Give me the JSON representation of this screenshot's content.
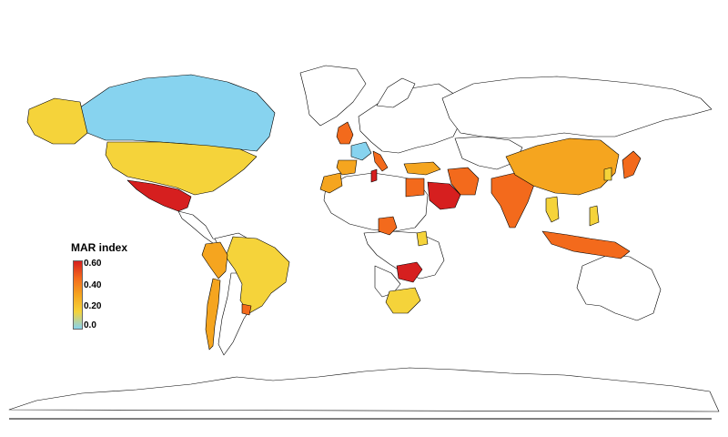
{
  "legend": {
    "title": "MAR index",
    "ticks": [
      "0.60",
      "0.40",
      "0.20",
      "0.0"
    ],
    "scale_min": 0.0,
    "scale_max": 0.62
  },
  "colors": {
    "not_assessed": "#ffffff",
    "ramp": [
      "#87d3ef",
      "#f5d33a",
      "#f5a51f",
      "#f36a1c",
      "#d61f1f"
    ]
  },
  "regions": [
    {
      "name": "Canada",
      "mar": 0.0
    },
    {
      "name": "Alaska",
      "mar": 0.1
    },
    {
      "name": "United States",
      "mar": 0.1
    },
    {
      "name": "Mexico",
      "mar": 0.55
    },
    {
      "name": "Brazil",
      "mar": 0.1
    },
    {
      "name": "Peru",
      "mar": 0.28
    },
    {
      "name": "Chile",
      "mar": 0.38
    },
    {
      "name": "Uruguay",
      "mar": 0.42
    },
    {
      "name": "United Kingdom",
      "mar": 0.45
    },
    {
      "name": "France",
      "mar": 0.05
    },
    {
      "name": "Spain",
      "mar": 0.3
    },
    {
      "name": "Italy",
      "mar": 0.45
    },
    {
      "name": "Turkey",
      "mar": 0.38
    },
    {
      "name": "Iran",
      "mar": 0.5
    },
    {
      "name": "Saudi Arabia",
      "mar": 0.58
    },
    {
      "name": "Egypt",
      "mar": 0.42
    },
    {
      "name": "Tunisia",
      "mar": 0.55
    },
    {
      "name": "Morocco",
      "mar": 0.3
    },
    {
      "name": "Nigeria",
      "mar": 0.5
    },
    {
      "name": "Zambia",
      "mar": 0.58
    },
    {
      "name": "South Africa",
      "mar": 0.22
    },
    {
      "name": "India",
      "mar": 0.45
    },
    {
      "name": "China",
      "mar": 0.38
    },
    {
      "name": "Japan",
      "mar": 0.4
    },
    {
      "name": "Korea",
      "mar": 0.22
    },
    {
      "name": "Thailand",
      "mar": 0.22
    },
    {
      "name": "Indonesia",
      "mar": 0.48
    },
    {
      "name": "Philippines",
      "mar": 0.22
    },
    {
      "name": "Kenya",
      "mar": 0.1
    }
  ]
}
